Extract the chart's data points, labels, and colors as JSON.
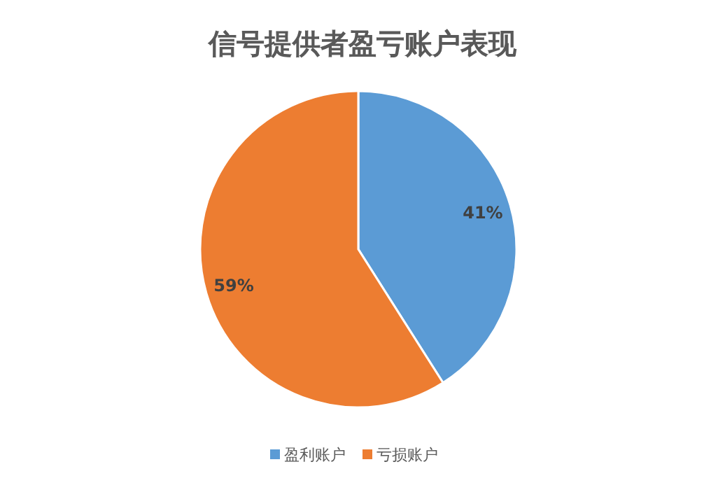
{
  "chart_data": {
    "type": "pie",
    "title": "信号提供者盈亏账户表现",
    "categories": [
      "盈利账户",
      "亏损账户"
    ],
    "values": [
      41,
      59
    ],
    "colors": [
      "#5b9bd5",
      "#ed7d31"
    ],
    "value_labels": [
      "41%",
      "59%"
    ],
    "legend": "bottom"
  }
}
